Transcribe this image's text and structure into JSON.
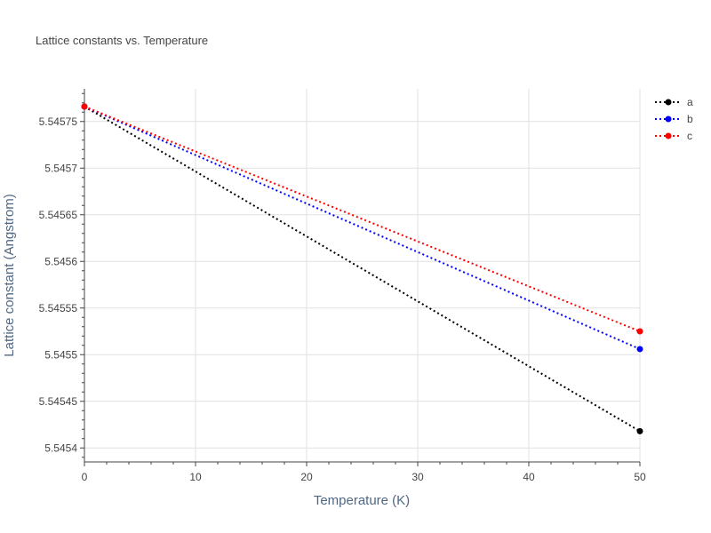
{
  "chart_data": {
    "type": "line",
    "title": "Lattice constants vs. Temperature",
    "xlabel": "Temperature (K)",
    "ylabel": "Lattice constant (Angstrom)",
    "x": [
      0,
      50
    ],
    "xlim": [
      0,
      50
    ],
    "ylim": [
      5.545385,
      5.545785
    ],
    "xticks": [
      0,
      10,
      20,
      30,
      40,
      50
    ],
    "xtick_labels": [
      "0",
      "10",
      "20",
      "30",
      "40",
      "50"
    ],
    "yticks": [
      5.5454,
      5.54545,
      5.5455,
      5.54555,
      5.5456,
      5.54565,
      5.5457,
      5.54575
    ],
    "ytick_labels": [
      "5.5454",
      "5.54545",
      "5.5455",
      "5.54555",
      "5.5456",
      "5.54565",
      "5.5457",
      "5.54575"
    ],
    "grid": true,
    "legend_position": "top-right",
    "line_style": "dotted",
    "series": [
      {
        "name": "a",
        "color": "#000000",
        "values": [
          5.545766,
          5.545418
        ]
      },
      {
        "name": "b",
        "color": "#0000ff",
        "values": [
          5.545766,
          5.545506
        ]
      },
      {
        "name": "c",
        "color": "#ff0000",
        "values": [
          5.545766,
          5.545525
        ]
      }
    ]
  }
}
